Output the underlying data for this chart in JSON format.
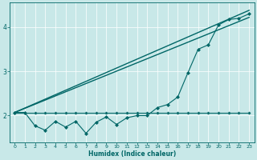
{
  "xlabel": "Humidex (Indice chaleur)",
  "bg_color": "#c8e8e8",
  "line_color": "#006666",
  "grid_color": "#a0c8c8",
  "xlim": [
    -0.5,
    23.5
  ],
  "ylim": [
    1.4,
    4.55
  ],
  "xticks": [
    0,
    1,
    2,
    3,
    4,
    5,
    6,
    7,
    8,
    9,
    10,
    11,
    12,
    13,
    14,
    15,
    16,
    17,
    18,
    19,
    20,
    21,
    22,
    23
  ],
  "yticks": [
    2,
    3,
    4
  ],
  "series": {
    "linear_low": {
      "x": [
        0,
        23
      ],
      "y": [
        2.07,
        4.22
      ],
      "lw": 1.0
    },
    "linear_high": {
      "x": [
        0,
        23
      ],
      "y": [
        2.07,
        4.38
      ],
      "lw": 1.0
    },
    "flat_cross": {
      "x": [
        0,
        1,
        2,
        3,
        4,
        5,
        6,
        7,
        8,
        9,
        10,
        11,
        12,
        13,
        14,
        15,
        16,
        17,
        18,
        19,
        20,
        21,
        22,
        23
      ],
      "y": [
        2.07,
        2.07,
        2.07,
        2.07,
        2.07,
        2.07,
        2.07,
        2.07,
        2.07,
        2.07,
        2.07,
        2.07,
        2.07,
        2.07,
        2.07,
        2.07,
        2.07,
        2.07,
        2.07,
        2.07,
        2.07,
        2.07,
        2.07,
        2.07
      ],
      "marker": "P",
      "markersize": 2.0,
      "lw": 0.8
    },
    "zigzag": {
      "x": [
        0,
        1,
        2,
        3,
        4,
        5,
        6,
        7,
        8,
        9,
        10,
        11,
        12,
        13,
        14,
        15,
        16,
        17,
        18,
        19,
        20,
        21,
        22,
        23
      ],
      "y": [
        2.07,
        2.07,
        1.77,
        1.67,
        1.87,
        1.74,
        1.87,
        1.6,
        1.85,
        1.97,
        1.8,
        1.95,
        2.0,
        2.0,
        2.18,
        2.25,
        2.42,
        2.97,
        3.5,
        3.6,
        4.05,
        4.17,
        4.2,
        4.3
      ],
      "marker": "D",
      "markersize": 2.0,
      "lw": 0.8
    }
  }
}
